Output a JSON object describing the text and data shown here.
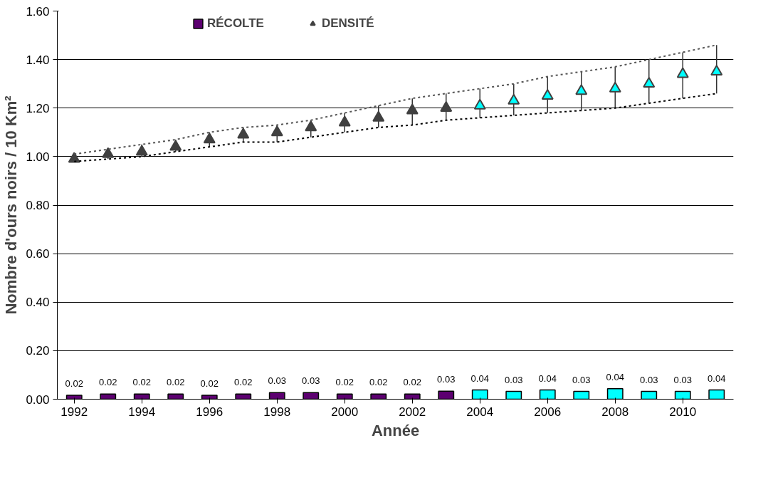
{
  "chart_data": {
    "type": "bar",
    "xlabel": "Année",
    "ylabel": "Nombre d'ours noirs / 10 Km²",
    "x": [
      1992,
      1993,
      1994,
      1995,
      1996,
      1997,
      1998,
      1999,
      2000,
      2001,
      2002,
      2003,
      2004,
      2005,
      2006,
      2007,
      2008,
      2009,
      2010,
      2011
    ],
    "xlim": [
      1991.5,
      2011.5
    ],
    "xticks": [
      1992,
      1994,
      1996,
      1998,
      2000,
      2002,
      2004,
      2006,
      2008,
      2010
    ],
    "ylim": [
      0,
      1.6
    ],
    "yticks": [
      {
        "value": 0,
        "label": "0.00"
      },
      {
        "value": 0.2,
        "label": "0.20"
      },
      {
        "value": 0.4,
        "label": "0.40"
      },
      {
        "value": 0.6,
        "label": "0.60"
      },
      {
        "value": 0.8,
        "label": "0.80"
      },
      {
        "value": 1.0,
        "label": "1.00"
      },
      {
        "value": 1.2,
        "label": "1.20"
      },
      {
        "value": 1.4,
        "label": "1.40"
      },
      {
        "value": 1.6,
        "label": "1.60"
      }
    ],
    "grid": "y",
    "legend": "top",
    "series": [
      {
        "name": "RÉCOLTE",
        "color": "#5c0070",
        "colors": [
          "#5c0070",
          "#5c0070",
          "#5c0070",
          "#5c0070",
          "#5c0070",
          "#5c0070",
          "#5c0070",
          "#5c0070",
          "#5c0070",
          "#5c0070",
          "#5c0070",
          "#5c0070",
          "#00ffff",
          "#00ffff",
          "#00ffff",
          "#00ffff",
          "#00ffff",
          "#00ffff",
          "#00ffff",
          "#00ffff"
        ],
        "values": [
          0.016,
          0.021,
          0.021,
          0.021,
          0.016,
          0.021,
          0.027,
          0.027,
          0.021,
          0.021,
          0.021,
          0.033,
          0.038,
          0.032,
          0.038,
          0.032,
          0.043,
          0.032,
          0.032,
          0.038
        ],
        "value_labels": [
          "0.02",
          "0.02",
          "0.02",
          "0.02",
          "0.02",
          "0.02",
          "0.03",
          "0.03",
          "0.02",
          "0.02",
          "0.02",
          "0.03",
          "0.04",
          "0.03",
          "0.04",
          "0.03",
          "0.04",
          "0.03",
          "0.03",
          "0.04"
        ]
      },
      {
        "name": "DENSITÉ",
        "type": "scatter",
        "marker": "triangle",
        "color": "#404040",
        "colors": [
          "#404040",
          "#404040",
          "#404040",
          "#404040",
          "#404040",
          "#404040",
          "#404040",
          "#404040",
          "#404040",
          "#404040",
          "#404040",
          "#404040",
          "#00ffff",
          "#00ffff",
          "#00ffff",
          "#00ffff",
          "#00ffff",
          "#00ffff",
          "#00ffff",
          "#00ffff"
        ],
        "values": [
          0.99,
          1.01,
          1.02,
          1.04,
          1.07,
          1.09,
          1.1,
          1.12,
          1.14,
          1.16,
          1.19,
          1.2,
          1.21,
          1.23,
          1.25,
          1.27,
          1.28,
          1.3,
          1.34,
          1.35
        ],
        "errors": [
          [
            0.98,
            1.01
          ],
          [
            0.99,
            1.03
          ],
          [
            1.0,
            1.05
          ],
          [
            1.02,
            1.07
          ],
          [
            1.04,
            1.1
          ],
          [
            1.06,
            1.12
          ],
          [
            1.06,
            1.13
          ],
          [
            1.08,
            1.15
          ],
          [
            1.1,
            1.18
          ],
          [
            1.12,
            1.21
          ],
          [
            1.13,
            1.24
          ],
          [
            1.15,
            1.26
          ],
          [
            1.16,
            1.28
          ],
          [
            1.17,
            1.3
          ],
          [
            1.18,
            1.33
          ],
          [
            1.19,
            1.35
          ],
          [
            1.2,
            1.37
          ],
          [
            1.22,
            1.4
          ],
          [
            1.24,
            1.43
          ],
          [
            1.26,
            1.46
          ]
        ]
      },
      {
        "type": "line",
        "line_style": "dotted",
        "color": "#555555",
        "values": [
          1.01,
          1.03,
          1.05,
          1.07,
          1.1,
          1.12,
          1.13,
          1.15,
          1.18,
          1.21,
          1.24,
          1.26,
          1.28,
          1.3,
          1.33,
          1.35,
          1.37,
          1.4,
          1.43,
          1.46
        ]
      },
      {
        "type": "line",
        "line_style": "dotted",
        "color": "#000000",
        "values": [
          0.98,
          0.99,
          1.0,
          1.02,
          1.04,
          1.06,
          1.06,
          1.08,
          1.1,
          1.12,
          1.13,
          1.15,
          1.16,
          1.17,
          1.18,
          1.19,
          1.2,
          1.22,
          1.24,
          1.26
        ]
      }
    ]
  }
}
